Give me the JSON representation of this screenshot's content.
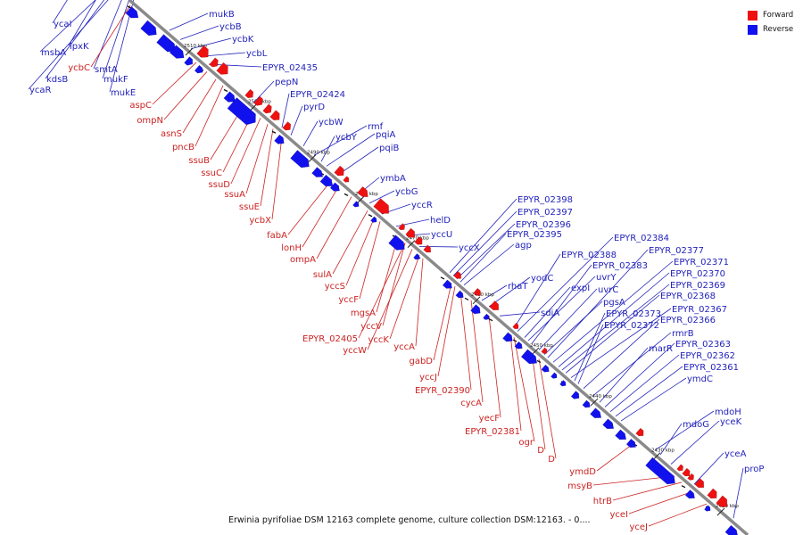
{
  "caption": "Erwinia pyrifoliae DSM 12163 complete genome, culture collection DSM:12163. - 0....",
  "legend": {
    "forward": "Forward",
    "reverse": "Reverse"
  },
  "colors": {
    "forward": "#ee1111",
    "reverse": "#1111ee",
    "axis": "#777777",
    "tick": "#222222",
    "fwd_label": "#cc2222",
    "rev_label": "#2222bb"
  },
  "ticks": [
    "2510 kbp",
    "2500 kbp",
    "2490 kbp",
    "2480 kbp",
    "2470 kbp",
    "2460 kbp",
    "2450 kbp",
    "2440 kbp",
    "2430 kbp",
    "2420 kbp"
  ],
  "forward_genes": [
    "ycbC",
    "aspC",
    "ompN",
    "asnS",
    "pncB",
    "ssuB",
    "ssuC",
    "ssuD",
    "ssuA",
    "ssuE",
    "ycbX",
    "fabA",
    "lonH",
    "ompA",
    "sulA",
    "yccS",
    "yccF",
    "mgsA",
    "yccV",
    "EPYR_02405",
    "yccW",
    "yccK",
    "yccA",
    "gabD",
    "yccJ",
    "EPYR_02390",
    "cycA",
    "yecF",
    "EPYR_02381",
    "ogr",
    "D",
    "D",
    "ymdD",
    "msyB",
    "htrB",
    "yceI",
    "yceJ"
  ],
  "reverse_genes": [
    "ycaI",
    "msbA",
    "lpxK",
    "kdsB",
    "ycaR",
    "smtA",
    "mukF",
    "mukE",
    "mukB",
    "ycbB",
    "ycbK",
    "ycbL",
    "EPYR_02435",
    "pepN",
    "EPYR_02424",
    "pyrD",
    "ycbW",
    "rmf",
    "ycbY",
    "pqiA",
    "pqiB",
    "ymbA",
    "ycbG",
    "yccR",
    "helD",
    "yccU",
    "yccX",
    "EPYR_02398",
    "EPYR_02397",
    "EPYR_02396",
    "EPYR_02395",
    "agp",
    "rhaT",
    "yodC",
    "sdiA",
    "EPYR_02388",
    "EPYR_02384",
    "expI",
    "uvrY",
    "EPYR_02383",
    "uvrC",
    "pgsA",
    "EPYR_02377",
    "EPYR_02371",
    "EPYR_02370",
    "EPYR_02369",
    "EPYR_02368",
    "EPYR_02367",
    "EPYR_02373",
    "EPYR_02372",
    "EPYR_02366",
    "rmrB",
    "marR",
    "EPYR_02363",
    "EPYR_02362",
    "EPYR_02361",
    "ymdC",
    "mdoH",
    "mdoG",
    "yceK",
    "yceA",
    "proP"
  ]
}
